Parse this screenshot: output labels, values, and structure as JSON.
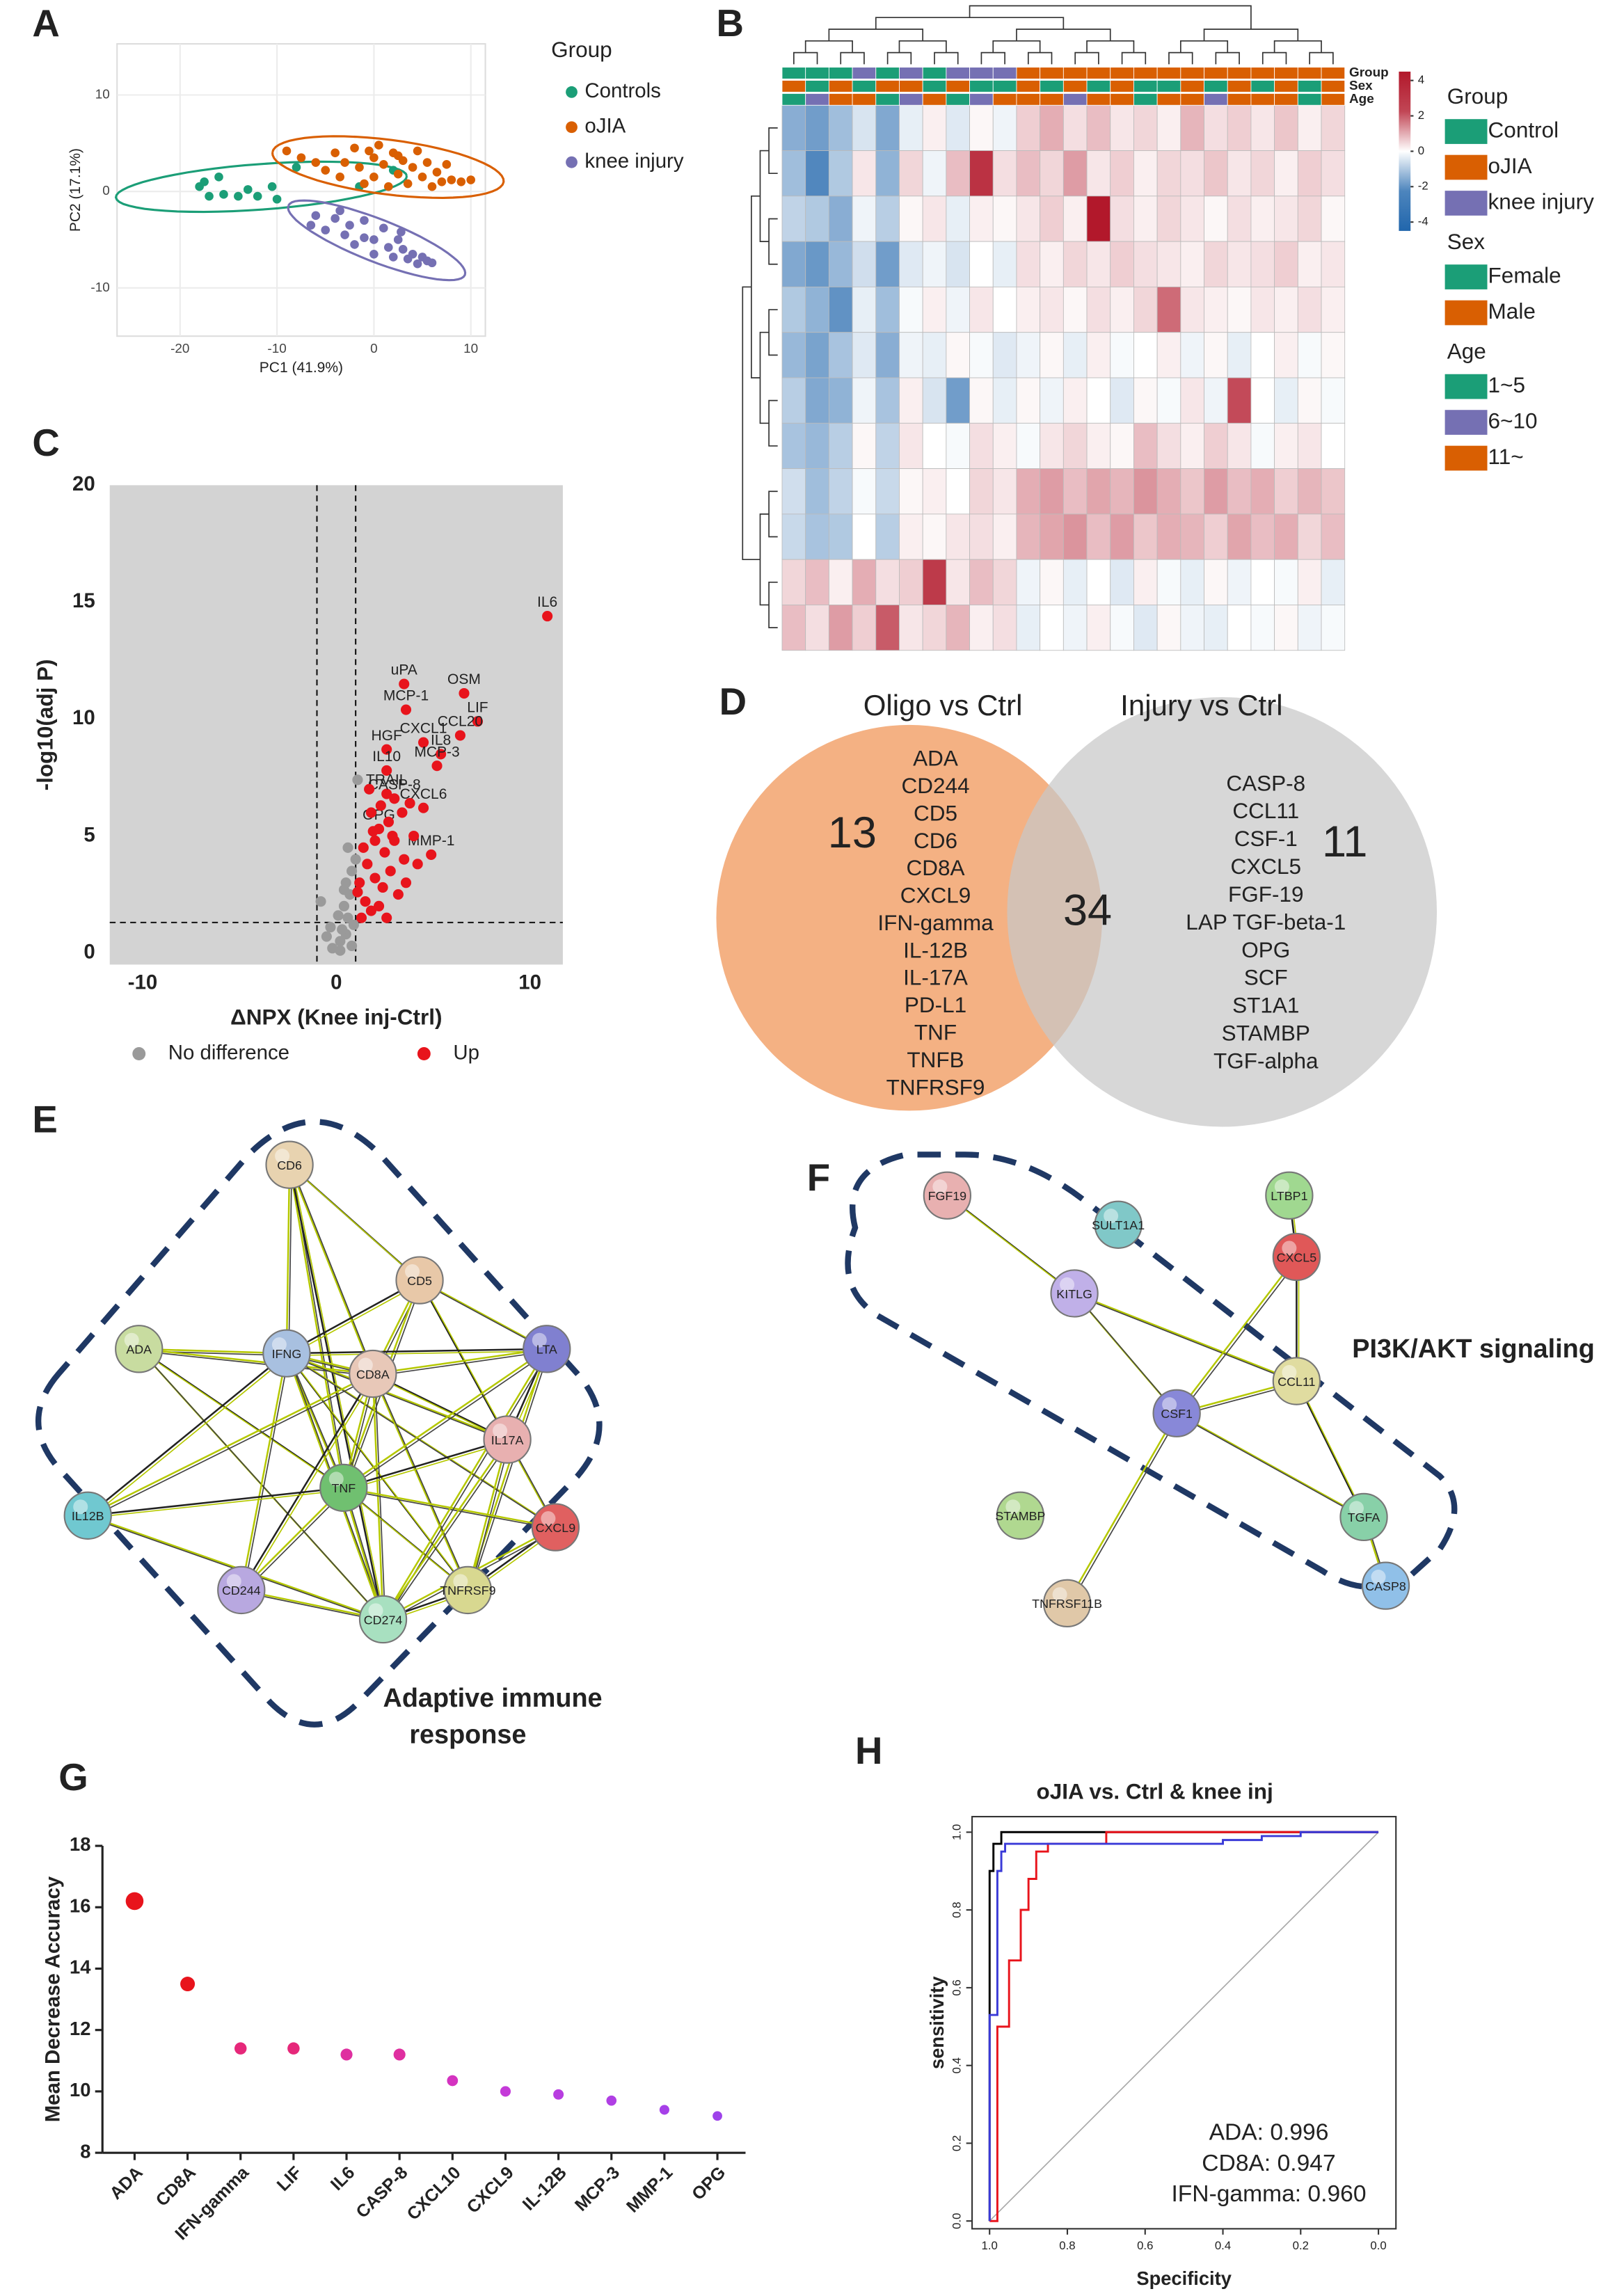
{
  "panel_labels": [
    "A",
    "B",
    "C",
    "D",
    "E",
    "F",
    "G",
    "H"
  ],
  "chart_data": [
    {
      "type": "scatter",
      "xlabel": "PC1 (41.9%)",
      "ylabel": "PC2 (17.1%)",
      "legend_title": "Group",
      "xlim": [
        -26.5,
        11.5
      ],
      "ylim": [
        -15,
        15.3
      ],
      "xticks": [
        -20,
        -10,
        0,
        10
      ],
      "yticks": [
        -10,
        0,
        10
      ],
      "grid": true,
      "series": [
        {
          "name": "Controls",
          "color": "#1b9e77",
          "x": [
            -18,
            -17.5,
            -17,
            -16,
            -15.5,
            -14,
            -13,
            -12,
            -10.5,
            -10,
            -8,
            -1.5,
            2
          ],
          "y": [
            0.5,
            1,
            -0.5,
            1.5,
            -0.3,
            -0.5,
            0.2,
            -0.5,
            0.5,
            -0.8,
            2.5,
            0.5,
            2.2
          ]
        },
        {
          "name": "oJIA",
          "color": "#d95f02",
          "x": [
            -9,
            -7.5,
            -6,
            -5,
            -4,
            -3.5,
            -3,
            -2,
            -1.5,
            -1,
            0,
            0,
            0.5,
            1,
            1.5,
            2,
            2.5,
            3,
            3.5,
            4,
            4.5,
            5,
            5.5,
            6,
            6.5,
            7,
            7.5,
            8,
            9,
            10,
            2.5,
            -0.5
          ],
          "y": [
            4.2,
            3.5,
            3,
            2.2,
            4,
            1.5,
            3,
            4.5,
            2.5,
            0.8,
            3.5,
            1.5,
            4.8,
            2.8,
            0.5,
            4,
            1.8,
            3.2,
            0.8,
            2.5,
            4.2,
            1.5,
            3,
            0.5,
            2,
            1,
            2.8,
            1.2,
            1,
            1.2,
            3.7,
            4.2
          ]
        },
        {
          "name": "knee injury",
          "color": "#7570b3",
          "x": [
            -6.5,
            -6,
            -5,
            -4,
            -3,
            -2.5,
            -2,
            -1,
            -1,
            0,
            0,
            1,
            1.5,
            2,
            2.5,
            3,
            3.5,
            4,
            4.5,
            5,
            5.5,
            6,
            2.8,
            -3.5
          ],
          "y": [
            -3.5,
            -2.5,
            -4,
            -2.8,
            -4.5,
            -3.5,
            -5.5,
            -3,
            -4.8,
            -5,
            -6.5,
            -3.8,
            -5.8,
            -6.8,
            -5,
            -6,
            -7,
            -6.5,
            -7.5,
            -6.8,
            -7.2,
            -7.4,
            -4.2,
            -2
          ]
        }
      ]
    },
    {
      "type": "heatmap",
      "clim": [
        -4.5,
        4.5
      ],
      "cticks": [
        4,
        2,
        0,
        -2,
        -4
      ],
      "annotation_rows": [
        "Group",
        "Sex",
        "Age"
      ],
      "legends": [
        {
          "title": "Group",
          "items": [
            {
              "name": "Control",
              "color": "#1b9e77"
            },
            {
              "name": "oJIA",
              "color": "#d95f02"
            },
            {
              "name": "knee injury",
              "color": "#7570b3"
            }
          ]
        },
        {
          "title": "Sex",
          "items": [
            {
              "name": "Female",
              "color": "#1b9e77"
            },
            {
              "name": "Male",
              "color": "#d95f02"
            }
          ]
        },
        {
          "title": "Age",
          "items": [
            {
              "name": "1~5",
              "color": "#1b9e77"
            },
            {
              "name": "6~10",
              "color": "#7570b3"
            },
            {
              "name": "11~",
              "color": "#d95f02"
            }
          ]
        }
      ],
      "annotations": [
        [
          "Control",
          "Control",
          "Control",
          "knee injury",
          "Control",
          "knee injury",
          "Control",
          "knee injury",
          "knee injury",
          "knee injury",
          "oJIA",
          "oJIA",
          "oJIA",
          "oJIA",
          "oJIA",
          "oJIA",
          "oJIA",
          "oJIA",
          "oJIA",
          "oJIA",
          "oJIA",
          "oJIA",
          "oJIA",
          "oJIA"
        ],
        [
          "Male",
          "Female",
          "Male",
          "Female",
          "Male",
          "Male",
          "Female",
          "Male",
          "Female",
          "Female",
          "Male",
          "Female",
          "Male",
          "Female",
          "Male",
          "Female",
          "Female",
          "Male",
          "Female",
          "Male",
          "Female",
          "Male",
          "Female",
          "Male"
        ],
        [
          "1~5",
          "6~10",
          "11~",
          "11~",
          "1~5",
          "6~10",
          "11~",
          "1~5",
          "6~10",
          "11~",
          "11~",
          "11~",
          "6~10",
          "11~",
          "11~",
          "1~5",
          "11~",
          "11~",
          "6~10",
          "11~",
          "11~",
          "11~",
          "1~5",
          "11~"
        ]
      ],
      "values": [
        [
          -1.5,
          -1.8,
          -1.2,
          -0.5,
          -1.6,
          -0.3,
          0.2,
          -0.4,
          0.1,
          -0.2,
          0.6,
          1.0,
          0.4,
          0.8,
          0.3,
          0.5,
          0.2,
          0.9,
          0.4,
          0.6,
          0.3,
          0.7,
          0.2,
          0.5
        ],
        [
          -1.2,
          -2.2,
          -1.0,
          0.3,
          -1.4,
          0.5,
          -0.2,
          0.8,
          2.5,
          0.4,
          0.8,
          0.5,
          1.2,
          0.3,
          0.6,
          0.2,
          0.5,
          0.4,
          0.7,
          0.3,
          0.5,
          0.2,
          0.6,
          0.4
        ],
        [
          -0.8,
          -1.0,
          -1.5,
          -0.2,
          -0.9,
          0.1,
          0.3,
          -0.3,
          0.2,
          0.1,
          0.3,
          0.6,
          0.2,
          3.2,
          0.4,
          0.2,
          0.5,
          0.3,
          0.1,
          0.4,
          0.2,
          0.3,
          0.5,
          0.1
        ],
        [
          -1.6,
          -1.9,
          -1.3,
          -0.6,
          -1.8,
          -0.4,
          -0.2,
          -0.5,
          0.0,
          -0.3,
          0.4,
          0.2,
          0.5,
          0.3,
          0.6,
          0.4,
          0.3,
          0.2,
          0.5,
          0.3,
          0.4,
          0.6,
          0.2,
          0.3
        ],
        [
          -1.0,
          -1.4,
          -2.0,
          -0.3,
          -1.2,
          -0.1,
          0.2,
          -0.2,
          0.3,
          0.0,
          0.2,
          0.3,
          0.1,
          0.4,
          0.2,
          0.5,
          1.8,
          0.3,
          0.2,
          0.1,
          0.3,
          0.2,
          0.4,
          0.2
        ],
        [
          -1.3,
          -1.7,
          -1.1,
          -0.4,
          -1.5,
          -0.2,
          -0.3,
          0.1,
          -0.1,
          -0.4,
          -0.2,
          0.1,
          -0.3,
          0.2,
          -0.1,
          0.0,
          0.2,
          -0.2,
          0.1,
          -0.3,
          0.0,
          0.2,
          -0.1,
          0.1
        ],
        [
          -0.9,
          -1.6,
          -1.4,
          -0.2,
          -1.1,
          0.2,
          -0.5,
          -1.8,
          0.1,
          -0.3,
          0.1,
          -0.2,
          0.2,
          0.0,
          -0.4,
          0.1,
          -0.1,
          0.3,
          -0.2,
          2.2,
          0.0,
          -0.3,
          0.1,
          -0.1
        ],
        [
          -1.1,
          -1.3,
          -0.9,
          0.1,
          -0.8,
          0.3,
          0.0,
          -0.1,
          0.4,
          0.2,
          -0.1,
          0.3,
          0.5,
          0.2,
          0.1,
          0.8,
          0.4,
          0.2,
          0.6,
          0.3,
          -0.1,
          0.2,
          0.3,
          0.0
        ],
        [
          -0.6,
          -1.2,
          -0.8,
          -0.1,
          -0.7,
          0.1,
          0.2,
          0.0,
          0.5,
          0.3,
          1.0,
          1.2,
          0.8,
          1.1,
          0.9,
          1.3,
          1.0,
          0.7,
          1.2,
          0.8,
          1.0,
          0.6,
          0.9,
          0.7
        ],
        [
          -0.7,
          -1.1,
          -1.0,
          0.0,
          -0.9,
          0.2,
          0.1,
          0.3,
          0.4,
          0.2,
          0.9,
          1.1,
          1.3,
          0.8,
          1.2,
          0.7,
          1.0,
          0.9,
          0.6,
          1.1,
          0.8,
          1.0,
          0.5,
          0.8
        ],
        [
          0.5,
          0.8,
          0.2,
          1.0,
          0.4,
          0.6,
          2.4,
          0.3,
          0.8,
          0.5,
          -0.2,
          0.1,
          -0.3,
          0.0,
          -0.4,
          0.2,
          -0.1,
          -0.3,
          0.1,
          -0.2,
          0.0,
          -0.1,
          0.2,
          -0.3
        ],
        [
          0.8,
          0.4,
          1.2,
          0.6,
          2.0,
          0.3,
          0.5,
          0.9,
          0.2,
          0.4,
          -0.3,
          0.0,
          -0.2,
          0.2,
          -0.1,
          -0.4,
          0.1,
          -0.2,
          -0.3,
          0.0,
          -0.1,
          0.1,
          -0.2,
          -0.1
        ]
      ]
    },
    {
      "type": "volcano",
      "xlabel": "ΔNPX (Knee inj-Ctrl)",
      "ylabel": "-log10(adj P)",
      "xlim": [
        -11.7,
        11.7
      ],
      "ylim": [
        -0.5,
        20
      ],
      "xticks": [
        -10,
        0,
        10
      ],
      "yticks": [
        0,
        5,
        10,
        15,
        20
      ],
      "vlines": [
        -1,
        1
      ],
      "hline": 1.3,
      "series": [
        {
          "name": "No difference",
          "color": "#9a9a9a",
          "x": [
            0.2,
            0.5,
            0.8,
            0.3,
            -0.2,
            0.6,
            -0.5,
            0.9,
            0.4,
            0.7,
            0.1,
            -0.3,
            0.5,
            0.8,
            1.0,
            0.6,
            1.1,
            -0.8,
            0.2,
            0.4
          ],
          "y": [
            0.5,
            0.8,
            0.3,
            1.0,
            0.2,
            1.5,
            0.7,
            1.2,
            2.0,
            2.5,
            1.6,
            1.1,
            3.0,
            3.5,
            4.0,
            4.5,
            7.4,
            2.2,
            0.1,
            2.7
          ]
        },
        {
          "name": "Up",
          "color": "#e8141c",
          "x": [
            10.9,
            3.5,
            6.6,
            3.6,
            7.3,
            4.5,
            6.4,
            2.6,
            5.4,
            2.6,
            5.2,
            2.6,
            3.0,
            4.5,
            2.2,
            4.9,
            1.3,
            1.5,
            1.8,
            1.2,
            1.6,
            2.0,
            2.4,
            2.8,
            3.2,
            1.4,
            2.0,
            2.5,
            3.0,
            3.5,
            1.8,
            2.3,
            3.4,
            2.7,
            4.0,
            1.9,
            2.2,
            3.6,
            1.7,
            2.9,
            1.1,
            2.6,
            4.2,
            3.8
          ],
          "y": [
            14.4,
            11.5,
            11.1,
            10.4,
            9.9,
            9.0,
            9.3,
            8.7,
            8.5,
            7.8,
            8.0,
            6.8,
            6.6,
            6.2,
            5.3,
            4.2,
            1.5,
            2.2,
            1.8,
            3.0,
            3.8,
            3.2,
            2.8,
            3.5,
            2.5,
            4.5,
            4.8,
            4.3,
            4.8,
            4.0,
            6.0,
            6.3,
            6.0,
            5.6,
            5.0,
            5.2,
            2.0,
            3.0,
            7.0,
            5.0,
            2.6,
            1.5,
            3.8,
            6.4
          ],
          "labels": [
            "IL6",
            "uPA",
            "OSM",
            "MCP-1",
            "LIF",
            "CXCL1",
            "CCL20",
            "HGF",
            "IL8",
            "IL10",
            "MCP-3",
            "TRAIL",
            "CASP-8",
            "CXCL6",
            "OPG",
            "MMP-1",
            null,
            null,
            null,
            null,
            null,
            null,
            null,
            null,
            null,
            null,
            null,
            null,
            null,
            null,
            null,
            null,
            null,
            null,
            null,
            null,
            null,
            null,
            null,
            null,
            null,
            null,
            null,
            null
          ]
        }
      ]
    },
    {
      "type": "dot",
      "ylabel": "Mean Decrease Accuracy",
      "categories": [
        "ADA",
        "CD8A",
        "IFN-gamma",
        "LIF",
        "IL6",
        "CASP-8",
        "CXCL10",
        "CXCL9",
        "IL-12B",
        "MCP-3",
        "MMP-1",
        "OPG"
      ],
      "values": [
        16.2,
        13.5,
        11.4,
        11.4,
        11.2,
        11.2,
        10.35,
        10.0,
        9.9,
        9.7,
        9.4,
        9.2
      ],
      "colors": [
        "#e8141c",
        "#e8141c",
        "#e6287a",
        "#e6287a",
        "#df2fa0",
        "#df2fa0",
        "#d433c0",
        "#c43ad8",
        "#b83de0",
        "#b03fe4",
        "#a640e8",
        "#9e42ea"
      ],
      "ylim": [
        8,
        18
      ],
      "yticks": [
        8,
        10,
        12,
        14,
        16,
        18
      ]
    },
    {
      "type": "line",
      "title": "oJIA vs. Ctrl & knee inj",
      "xlabel": "Specificity",
      "ylabel": "sensitivity",
      "xlim": [
        1.045,
        -0.045
      ],
      "ylim": [
        -0.02,
        1.04
      ],
      "xticks": [
        {
          "value": 1,
          "label": "1.0"
        },
        {
          "value": 0.8,
          "label": "0.8"
        },
        {
          "value": 0.6,
          "label": "0.6"
        },
        {
          "value": 0.4,
          "label": "0.4"
        },
        {
          "value": 0.2,
          "label": "0.2"
        },
        {
          "value": 0,
          "label": "0.0"
        }
      ],
      "yticks": [
        {
          "value": 0,
          "label": "0.0"
        },
        {
          "value": 0.2,
          "label": "0.2"
        },
        {
          "value": 0.4,
          "label": "0.4"
        },
        {
          "value": 0.6,
          "label": "0.6"
        },
        {
          "value": 0.8,
          "label": "0.8"
        },
        {
          "value": 1,
          "label": "1.0"
        }
      ],
      "series": [
        {
          "name": "ADA: 0.996",
          "color": "#000000",
          "x": [
            1,
            1,
            0.99,
            0.99,
            0.97,
            0.97,
            0
          ],
          "y": [
            0,
            0.9,
            0.9,
            0.97,
            0.97,
            1,
            1
          ]
        },
        {
          "name": "CD8A: 0.947",
          "color": "#e8141c",
          "x": [
            1,
            0.98,
            0.98,
            0.95,
            0.95,
            0.92,
            0.92,
            0.9,
            0.9,
            0.88,
            0.88,
            0.85,
            0.85,
            0.7,
            0.7,
            0
          ],
          "y": [
            0,
            0,
            0.5,
            0.5,
            0.67,
            0.67,
            0.8,
            0.8,
            0.88,
            0.88,
            0.95,
            0.95,
            0.97,
            0.97,
            1,
            1
          ]
        },
        {
          "name": "IFN-gamma: 0.960",
          "color": "#3a3ad8",
          "x": [
            1,
            1,
            0.98,
            0.98,
            0.97,
            0.97,
            0.96,
            0.96,
            0.4,
            0.4,
            0.3,
            0.3,
            0.2,
            0.2,
            0
          ],
          "y": [
            0,
            0.53,
            0.53,
            0.9,
            0.9,
            0.95,
            0.95,
            0.97,
            0.97,
            0.98,
            0.98,
            0.99,
            0.99,
            1,
            1
          ]
        }
      ]
    }
  ],
  "venn": {
    "left_title": "Oligo vs Ctrl",
    "right_title": "Injury vs Ctrl",
    "left_count": "13",
    "right_count": "11",
    "overlap_count": "34",
    "left_only": [
      "ADA",
      "CD244",
      "CD5",
      "CD6",
      "CD8A",
      "CXCL9",
      "IFN-gamma",
      "IL-12B",
      "IL-17A",
      "PD-L1",
      "TNF",
      "TNFB",
      "TNFRSF9"
    ],
    "right_only": [
      "CASP-8",
      "CCL11",
      "CSF-1",
      "CXCL5",
      "FGF-19",
      "LAP TGF-beta-1",
      "OPG",
      "SCF",
      "ST1A1",
      "STAMBP",
      "TGF-alpha"
    ]
  },
  "network_e": {
    "nodes": [
      "CD6",
      "CD5",
      "ADA",
      "IFNG",
      "CD8A",
      "LTA",
      "IL17A",
      "TNF",
      "IL12B",
      "CXCL9",
      "CD244",
      "TNFRSF9",
      "CD274"
    ],
    "annotation": [
      "Adaptive immune",
      "response"
    ]
  },
  "network_f": {
    "nodes": [
      "FGF19",
      "SULT1A1",
      "LTBP1",
      "CXCL5",
      "KITLG",
      "CCL11",
      "CSF1",
      "STAMBP",
      "TGFA",
      "CASP8",
      "TNFRSF11B"
    ],
    "annotation": [
      "PI3K/AKT signaling"
    ]
  }
}
